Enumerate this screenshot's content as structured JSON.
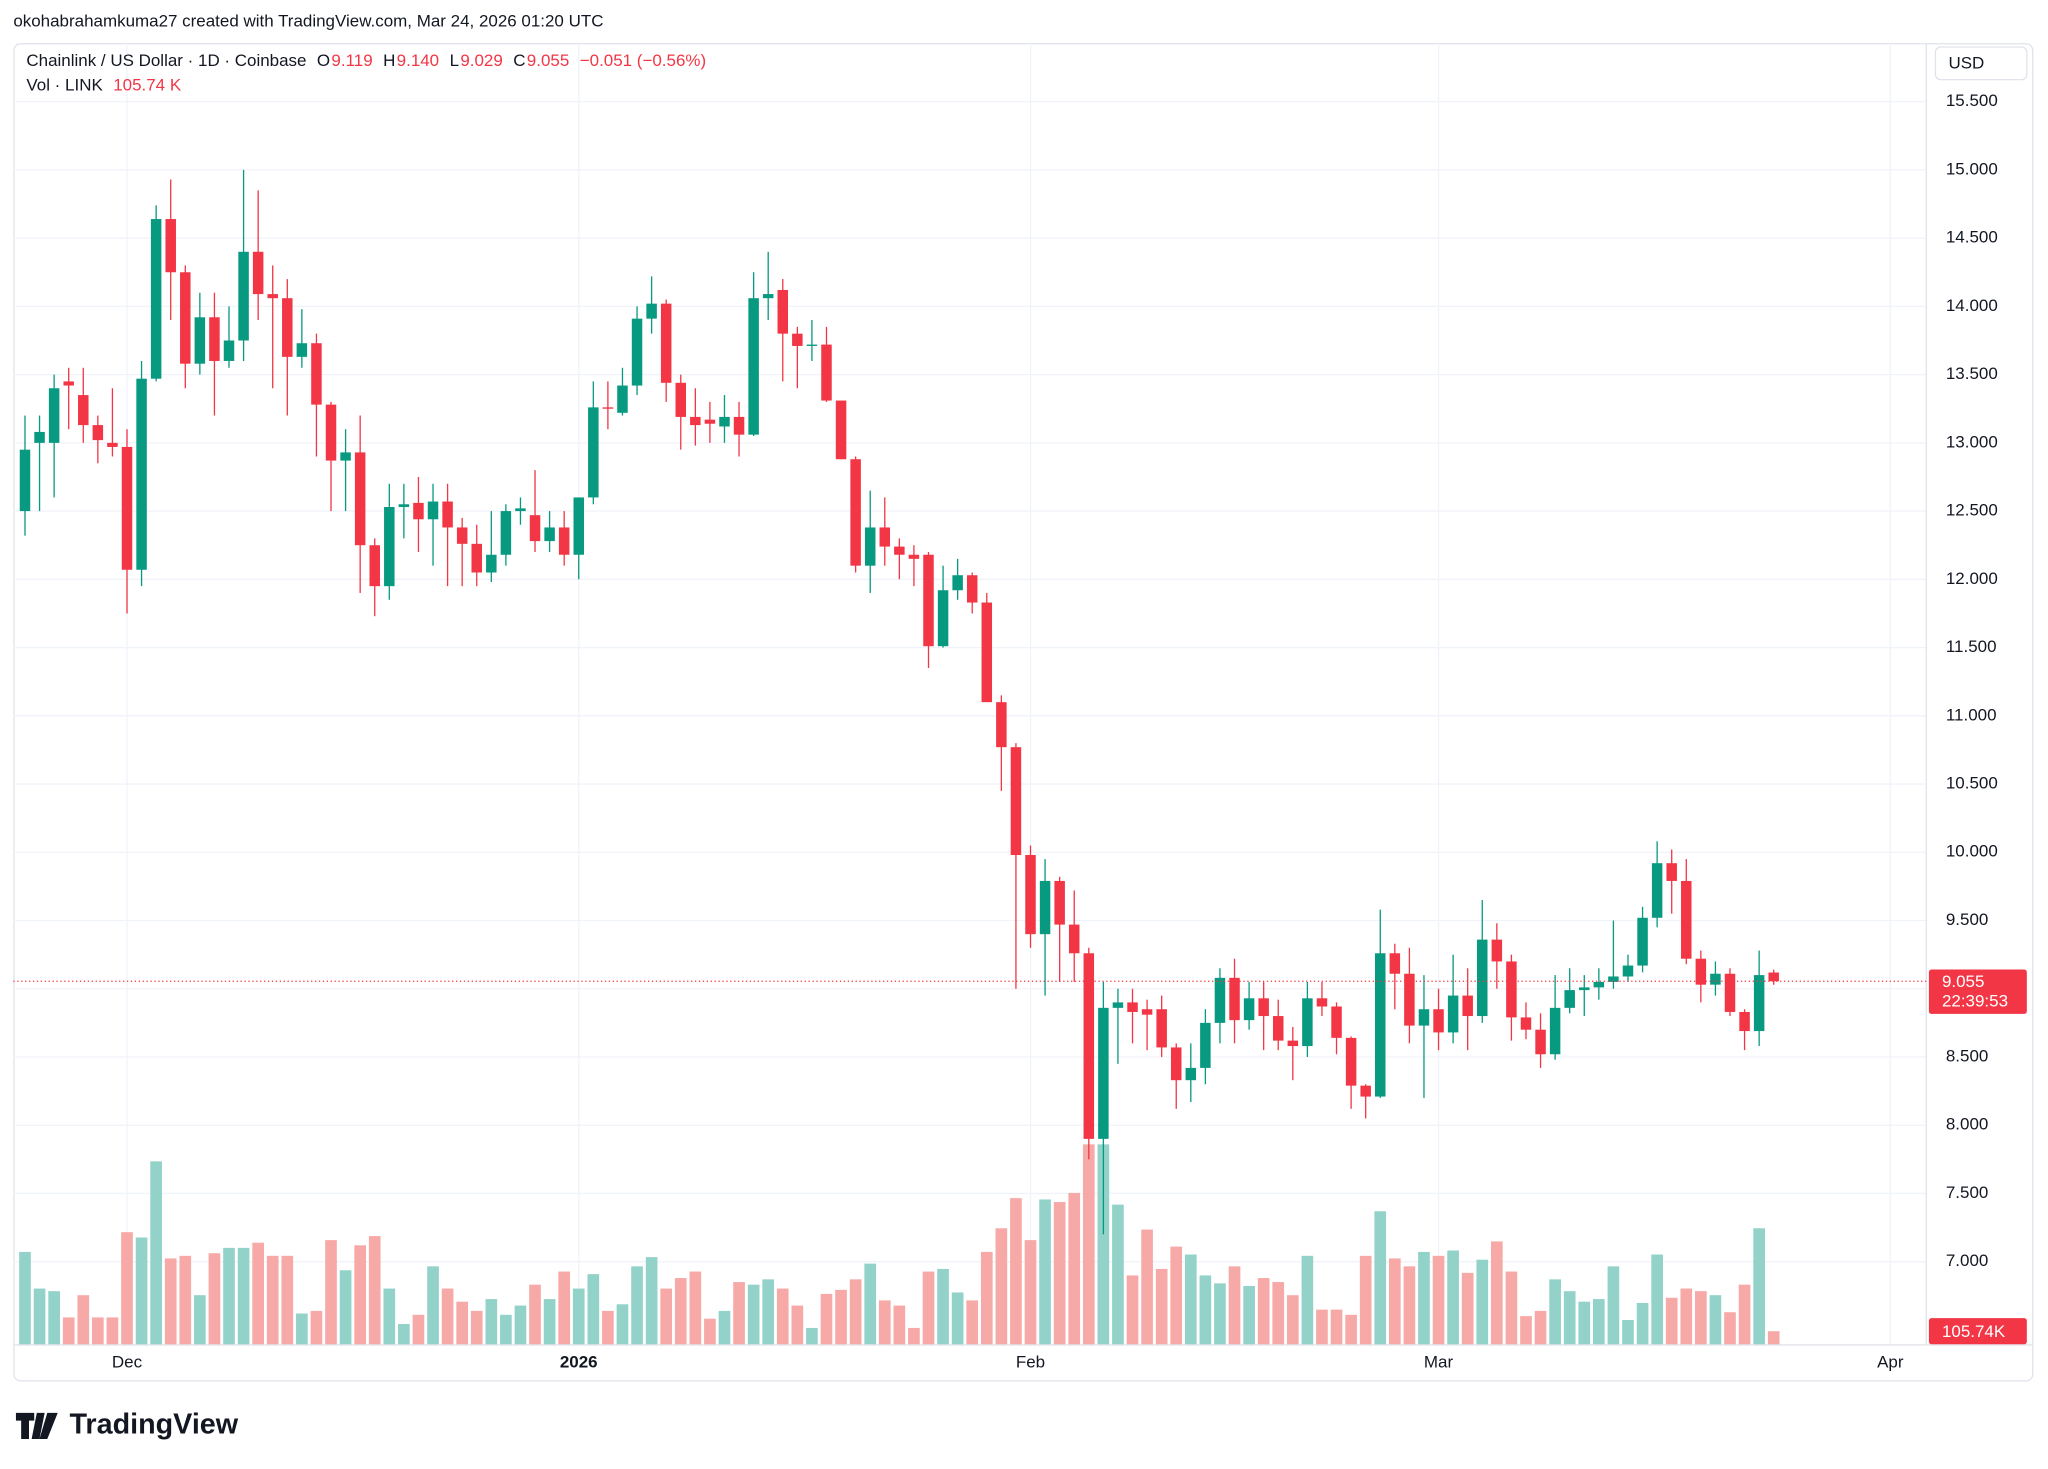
{
  "header": {
    "credit": "okohabrahamkuma27 created with TradingView.com, Mar 24, 2026 01:20 UTC",
    "brand": "TradingView"
  },
  "legend": {
    "symbol": "Chainlink / US Dollar · 1D · Coinbase",
    "ohlc": [
      {
        "label": "O",
        "value": "9.119"
      },
      {
        "label": "H",
        "value": "9.140"
      },
      {
        "label": "L",
        "value": "9.029"
      },
      {
        "label": "C",
        "value": "9.055"
      }
    ],
    "change": "−0.051 (−0.56%)",
    "volume_name": "Vol · LINK",
    "volume_value": "105.74 K"
  },
  "chart_data": {
    "type": "candlestick",
    "currency": "USD",
    "countdown": "22:39:53",
    "up_color": "#089981",
    "down_color": "#f23645",
    "volume_up_color": "#92d2c8",
    "volume_down_color": "#f7a9a7",
    "grid": true,
    "xlim": [
      -0.8,
      130.47
    ],
    "xticks": [
      {
        "value": 7,
        "label": "Dec"
      },
      {
        "value": 38,
        "label": "2026"
      },
      {
        "value": 69,
        "label": "Feb"
      },
      {
        "value": 97,
        "label": "Mar"
      },
      {
        "value": 128,
        "label": "Apr"
      }
    ],
    "ylim": [
      6.39,
      15.91
    ],
    "yticks": [
      {
        "value": 7,
        "label": "7.000"
      },
      {
        "value": 7.5,
        "label": "7.500"
      },
      {
        "value": 8,
        "label": "8.000"
      },
      {
        "value": 8.5,
        "label": "8.500"
      },
      {
        "value": 9,
        "label": "9.000"
      },
      {
        "value": 9.5,
        "label": "9.500"
      },
      {
        "value": 10,
        "label": "10.000"
      },
      {
        "value": 10.5,
        "label": "10.500"
      },
      {
        "value": 11,
        "label": "11.000"
      },
      {
        "value": 11.5,
        "label": "11.500"
      },
      {
        "value": 12,
        "label": "12.000"
      },
      {
        "value": 12.5,
        "label": "12.500"
      },
      {
        "value": 13,
        "label": "13.000"
      },
      {
        "value": 13.5,
        "label": "13.500"
      },
      {
        "value": 14,
        "label": "14.000"
      },
      {
        "value": 14.5,
        "label": "14.500"
      },
      {
        "value": 15,
        "label": "15.000"
      },
      {
        "value": 15.5,
        "label": "15.500"
      }
    ],
    "volume_ylim": [
      0,
      10000
    ],
    "volume_value_label": "105.74K",
    "open": [
      12.5,
      13.0,
      13.0,
      13.45,
      13.35,
      13.13,
      13.0,
      12.97,
      12.07,
      13.47,
      14.64,
      14.25,
      13.58,
      13.92,
      13.6,
      13.75,
      14.4,
      14.09,
      14.06,
      13.63,
      13.73,
      13.28,
      12.87,
      12.93,
      12.25,
      11.95,
      12.53,
      12.56,
      12.44,
      12.57,
      12.38,
      12.26,
      12.05,
      12.18,
      12.5,
      12.47,
      12.28,
      12.38,
      12.18,
      12.6,
      13.26,
      13.22,
      13.42,
      13.91,
      14.02,
      13.44,
      13.19,
      13.17,
      13.12,
      13.19,
      13.06,
      14.06,
      14.12,
      13.8,
      13.71,
      13.72,
      13.31,
      12.88,
      12.1,
      12.38,
      12.24,
      12.18,
      12.18,
      11.51,
      11.92,
      12.03,
      11.83,
      11.1,
      10.77,
      9.98,
      9.4,
      9.79,
      9.47,
      9.26,
      7.9,
      8.86,
      8.9,
      8.85,
      8.85,
      8.57,
      8.33,
      8.42,
      8.75,
      9.08,
      8.77,
      8.93,
      8.8,
      8.62,
      8.58,
      8.93,
      8.87,
      8.64,
      8.29,
      8.21,
      9.26,
      9.11,
      8.73,
      8.85,
      8.68,
      8.95,
      8.8,
      9.36,
      9.2,
      8.79,
      8.7,
      8.52,
      8.86,
      8.99,
      9.01,
      9.05,
      9.09,
      9.17,
      9.52,
      9.92,
      9.79,
      9.22,
      9.03,
      9.11,
      8.83,
      8.69,
      9.119
    ],
    "high": [
      13.2,
      13.2,
      13.5,
      13.55,
      13.55,
      13.2,
      13.4,
      13.1,
      13.6,
      14.74,
      14.93,
      14.3,
      14.1,
      14.1,
      14.0,
      15.0,
      14.85,
      14.3,
      14.2,
      13.98,
      13.8,
      13.3,
      13.1,
      13.2,
      12.3,
      12.7,
      12.7,
      12.75,
      12.7,
      12.7,
      12.45,
      12.4,
      12.5,
      12.55,
      12.6,
      12.8,
      12.5,
      12.5,
      12.6,
      13.45,
      13.45,
      13.55,
      14.0,
      14.22,
      14.05,
      13.5,
      13.4,
      13.3,
      13.35,
      13.3,
      14.25,
      14.4,
      14.2,
      13.85,
      13.9,
      13.85,
      13.3,
      12.9,
      12.65,
      12.6,
      12.3,
      12.25,
      12.2,
      12.1,
      12.15,
      12.05,
      11.9,
      11.15,
      10.8,
      10.05,
      9.95,
      9.82,
      9.72,
      9.3,
      9.05,
      9.0,
      9.0,
      8.92,
      8.95,
      8.6,
      8.6,
      8.85,
      9.15,
      9.22,
      9.05,
      9.05,
      8.92,
      8.72,
      9.05,
      9.05,
      8.9,
      8.65,
      8.3,
      9.58,
      9.33,
      9.3,
      9.1,
      9.0,
      9.25,
      9.15,
      9.65,
      9.48,
      9.25,
      8.9,
      8.82,
      9.1,
      9.15,
      9.1,
      9.15,
      9.5,
      9.25,
      9.6,
      10.08,
      10.02,
      9.95,
      9.28,
      9.2,
      9.15,
      8.85,
      9.28,
      9.14
    ],
    "low": [
      12.32,
      12.5,
      12.6,
      13.1,
      13.0,
      12.85,
      12.9,
      11.75,
      11.95,
      13.45,
      13.9,
      13.4,
      13.5,
      13.2,
      13.55,
      13.6,
      13.9,
      13.4,
      13.2,
      13.55,
      12.9,
      12.5,
      12.5,
      11.9,
      11.73,
      11.85,
      12.3,
      12.2,
      12.1,
      11.95,
      11.95,
      11.95,
      11.98,
      12.1,
      12.4,
      12.2,
      12.2,
      12.1,
      12.0,
      12.55,
      13.1,
      13.2,
      13.35,
      13.8,
      13.3,
      12.95,
      12.98,
      13.0,
      13.0,
      12.9,
      13.05,
      13.9,
      13.45,
      13.4,
      13.6,
      13.3,
      12.88,
      12.05,
      11.9,
      12.1,
      12.0,
      11.95,
      11.35,
      11.5,
      11.85,
      11.75,
      11.1,
      10.45,
      9.0,
      9.3,
      8.95,
      9.05,
      9.05,
      7.75,
      7.2,
      8.45,
      8.6,
      8.55,
      8.5,
      8.12,
      8.17,
      8.3,
      8.6,
      8.6,
      8.7,
      8.55,
      8.55,
      8.33,
      8.5,
      8.8,
      8.52,
      8.12,
      8.05,
      8.2,
      8.85,
      8.6,
      8.2,
      8.55,
      8.6,
      8.55,
      8.75,
      9.0,
      8.62,
      8.63,
      8.42,
      8.48,
      8.82,
      8.8,
      8.92,
      9.0,
      9.05,
      9.12,
      9.45,
      9.55,
      9.18,
      8.9,
      8.95,
      8.8,
      8.55,
      8.58,
      9.029
    ],
    "close": [
      12.95,
      13.08,
      13.4,
      13.42,
      13.13,
      13.02,
      12.97,
      12.07,
      13.47,
      14.64,
      14.25,
      13.58,
      13.92,
      13.6,
      13.75,
      14.4,
      14.09,
      14.06,
      13.63,
      13.73,
      13.28,
      12.87,
      12.93,
      12.25,
      11.95,
      12.53,
      12.55,
      12.44,
      12.57,
      12.38,
      12.26,
      12.05,
      12.18,
      12.5,
      12.52,
      12.28,
      12.38,
      12.18,
      12.6,
      13.26,
      13.25,
      13.42,
      13.91,
      14.02,
      13.44,
      13.19,
      13.13,
      13.14,
      13.19,
      13.06,
      14.06,
      14.09,
      13.8,
      13.71,
      13.72,
      13.31,
      12.88,
      12.1,
      12.38,
      12.24,
      12.18,
      12.15,
      11.51,
      11.92,
      12.03,
      11.83,
      11.1,
      10.77,
      9.98,
      9.4,
      9.79,
      9.47,
      9.26,
      7.9,
      8.86,
      8.9,
      8.83,
      8.81,
      8.57,
      8.33,
      8.42,
      8.75,
      9.08,
      8.77,
      8.93,
      8.8,
      8.62,
      8.58,
      8.93,
      8.87,
      8.64,
      8.29,
      8.21,
      9.26,
      9.11,
      8.73,
      8.85,
      8.68,
      8.95,
      8.8,
      9.36,
      9.2,
      8.79,
      8.7,
      8.52,
      8.86,
      8.99,
      9.01,
      9.05,
      9.09,
      9.17,
      9.52,
      9.92,
      9.79,
      9.22,
      9.03,
      9.11,
      8.83,
      8.69,
      9.1,
      9.055
    ],
    "volume": [
      716,
      434,
      414,
      212,
      383,
      212,
      212,
      868,
      827,
      1413,
      666,
      686,
      383,
      706,
      747,
      747,
      787,
      686,
      686,
      242,
      262,
      807,
      575,
      767,
      838,
      434,
      161,
      232,
      605,
      434,
      333,
      262,
      353,
      232,
      303,
      464,
      353,
      565,
      434,
      545,
      262,
      313,
      605,
      676,
      434,
      515,
      565,
      202,
      262,
      484,
      464,
      505,
      434,
      303,
      131,
      393,
      424,
      505,
      626,
      343,
      303,
      131,
      565,
      585,
      404,
      343,
      716,
      898,
      1130,
      807,
      1120,
      1100,
      1170,
      1544,
      1544,
      1080,
      535,
      888,
      585,
      757,
      696,
      535,
      474,
      605,
      454,
      515,
      484,
      383,
      686,
      272,
      272,
      232,
      686,
      1029,
      666,
      605,
      716,
      686,
      727,
      555,
      656,
      797,
      565,
      222,
      262,
      505,
      414,
      333,
      353,
      605,
      192,
      323,
      696,
      363,
      434,
      414,
      383,
      252,
      464,
      898,
      105.74
    ]
  }
}
